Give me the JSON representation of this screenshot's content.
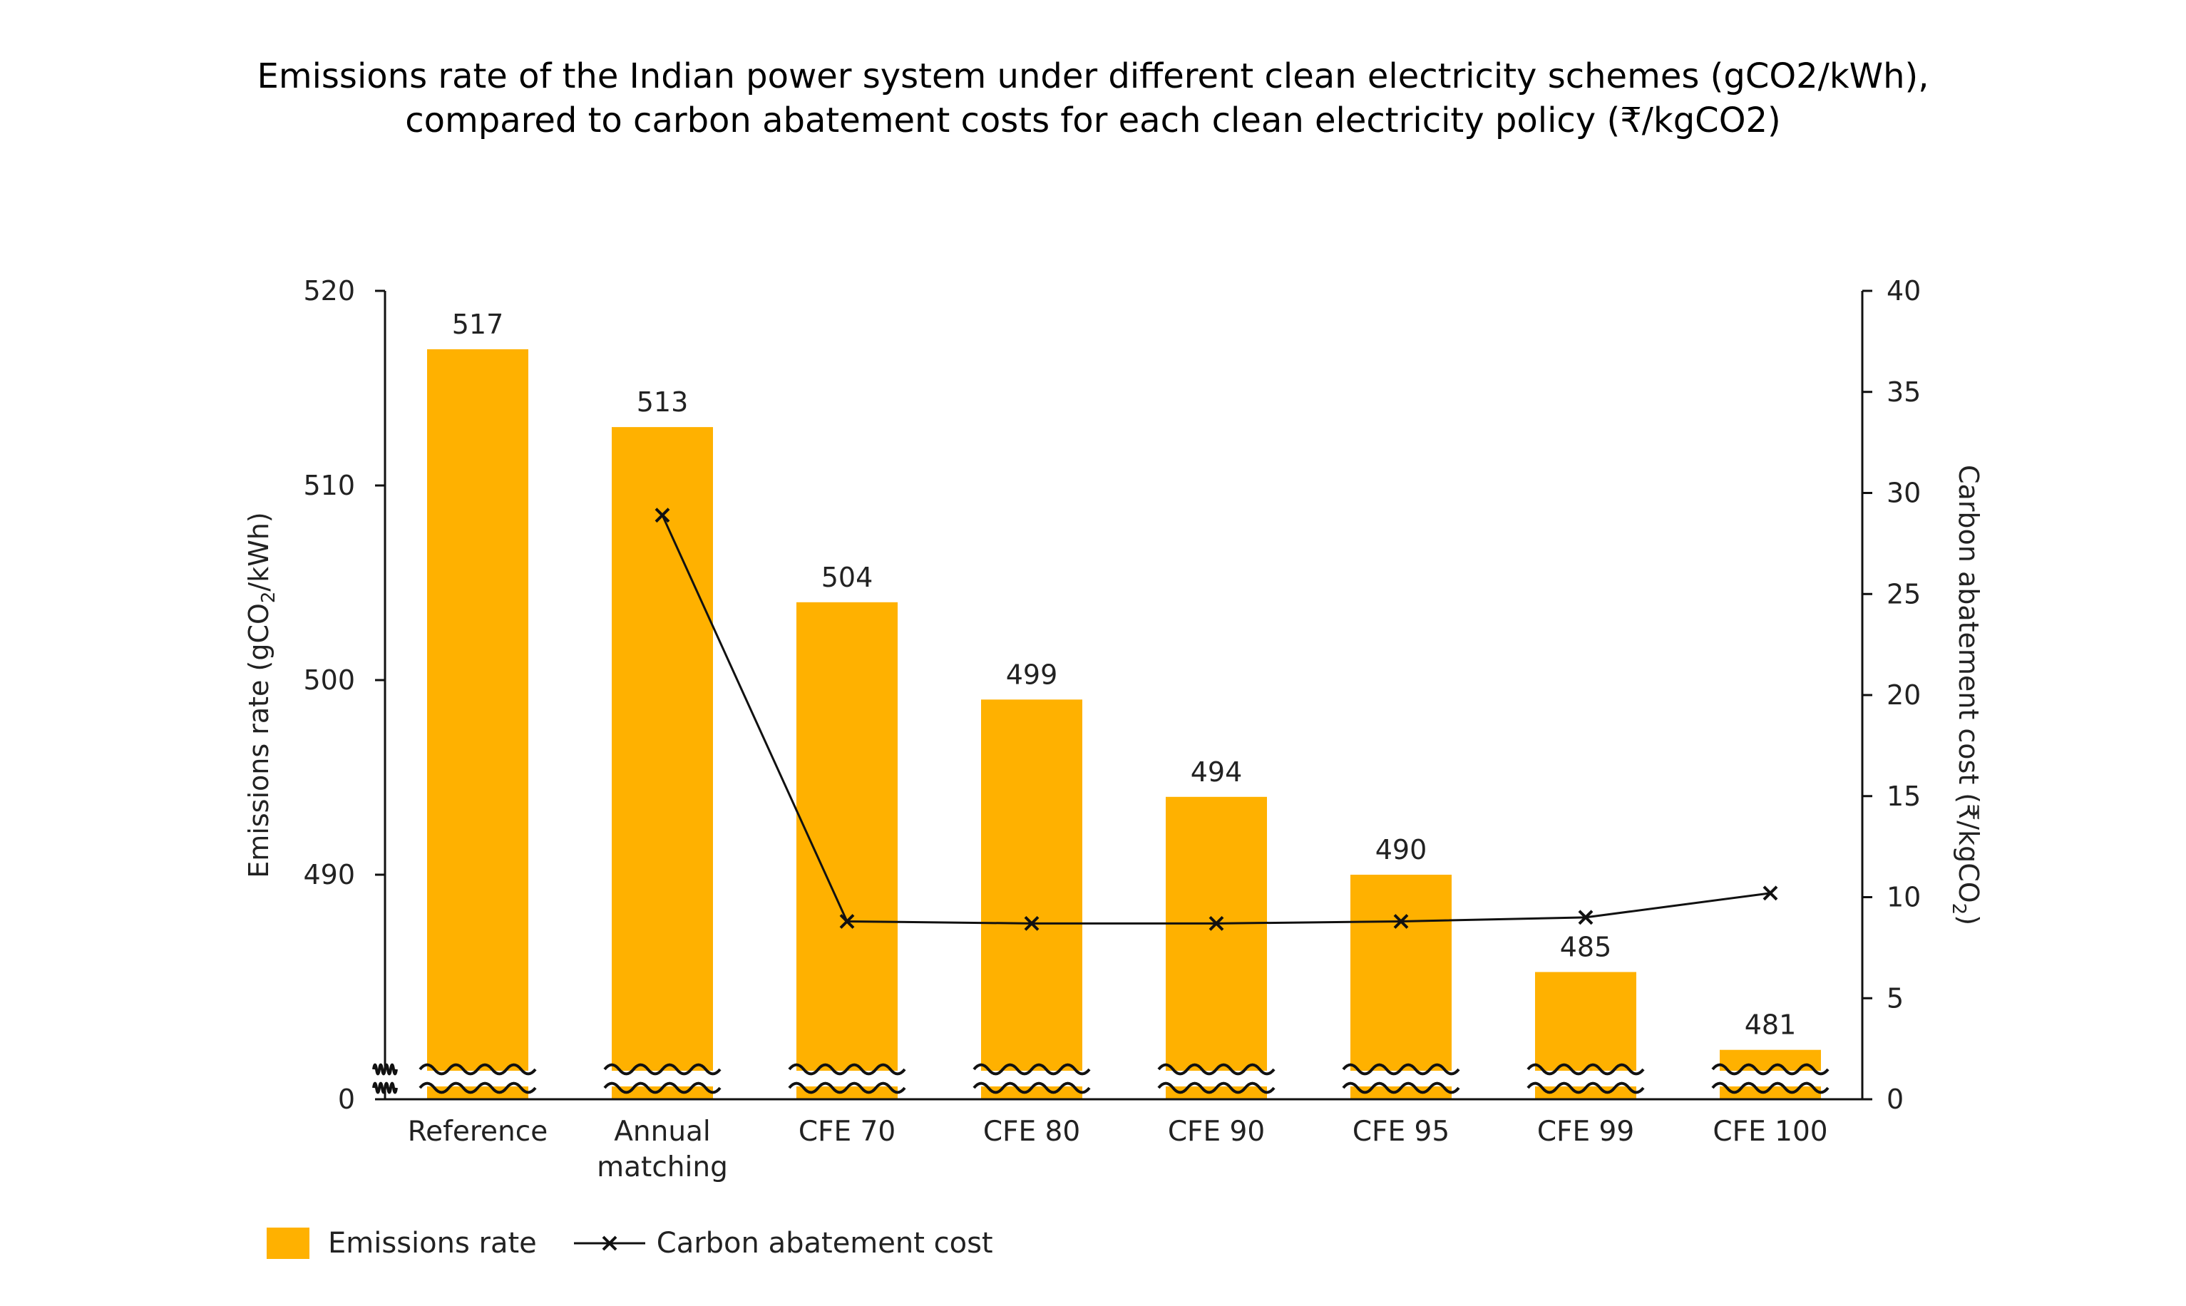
{
  "chart_data": {
    "type": "bar",
    "title": "Emissions rate of the Indian power system under different clean electricity schemes (gCO2/kWh),",
    "subtitle": "compared to carbon abatement costs for each clean electricity policy (₹/kgCO2)",
    "categories": [
      "Reference",
      "Annual matching",
      "CFE 70",
      "CFE 80",
      "CFE 90",
      "CFE 95",
      "CFE 99",
      "CFE 100"
    ],
    "category_lines": [
      [
        "Reference"
      ],
      [
        "Annual",
        "matching"
      ],
      [
        "CFE 70"
      ],
      [
        "CFE 80"
      ],
      [
        "CFE 90"
      ],
      [
        "CFE 95"
      ],
      [
        "CFE 99"
      ],
      [
        "CFE 100"
      ]
    ],
    "series": [
      {
        "name": "Emissions rate",
        "type": "bar",
        "axis": "left",
        "color": "#FFB100",
        "values": [
          517,
          513,
          504,
          499,
          494,
          490,
          485,
          481
        ],
        "data_labels": [
          "517",
          "513",
          "504",
          "499",
          "494",
          "490",
          "485",
          "481"
        ]
      },
      {
        "name": "Carbon abatement cost",
        "type": "line",
        "axis": "right",
        "color": "#111111",
        "marker": "x",
        "values": [
          null,
          28.9,
          8.8,
          8.7,
          8.7,
          8.8,
          9.0,
          10.2
        ]
      }
    ],
    "ylabel": "Emissions rate (gCO₂/kWh)",
    "ylabel_parts": [
      "Emissions rate (gCO",
      "2",
      "/kWh)"
    ],
    "y_axis_break": true,
    "ylim": [
      480,
      520
    ],
    "y_ticks": [
      520,
      510,
      500,
      490,
      0
    ],
    "y2label": "Carbon abatement cost (₹/kgCO₂)",
    "y2label_parts": [
      "Carbon abatement cost (₹/kgCO",
      "2",
      ")"
    ],
    "y2lim": [
      0,
      40
    ],
    "y2_ticks": [
      0,
      5,
      10,
      15,
      20,
      25,
      30,
      35,
      40
    ],
    "grid": false,
    "legend_position": "bottom-left"
  }
}
